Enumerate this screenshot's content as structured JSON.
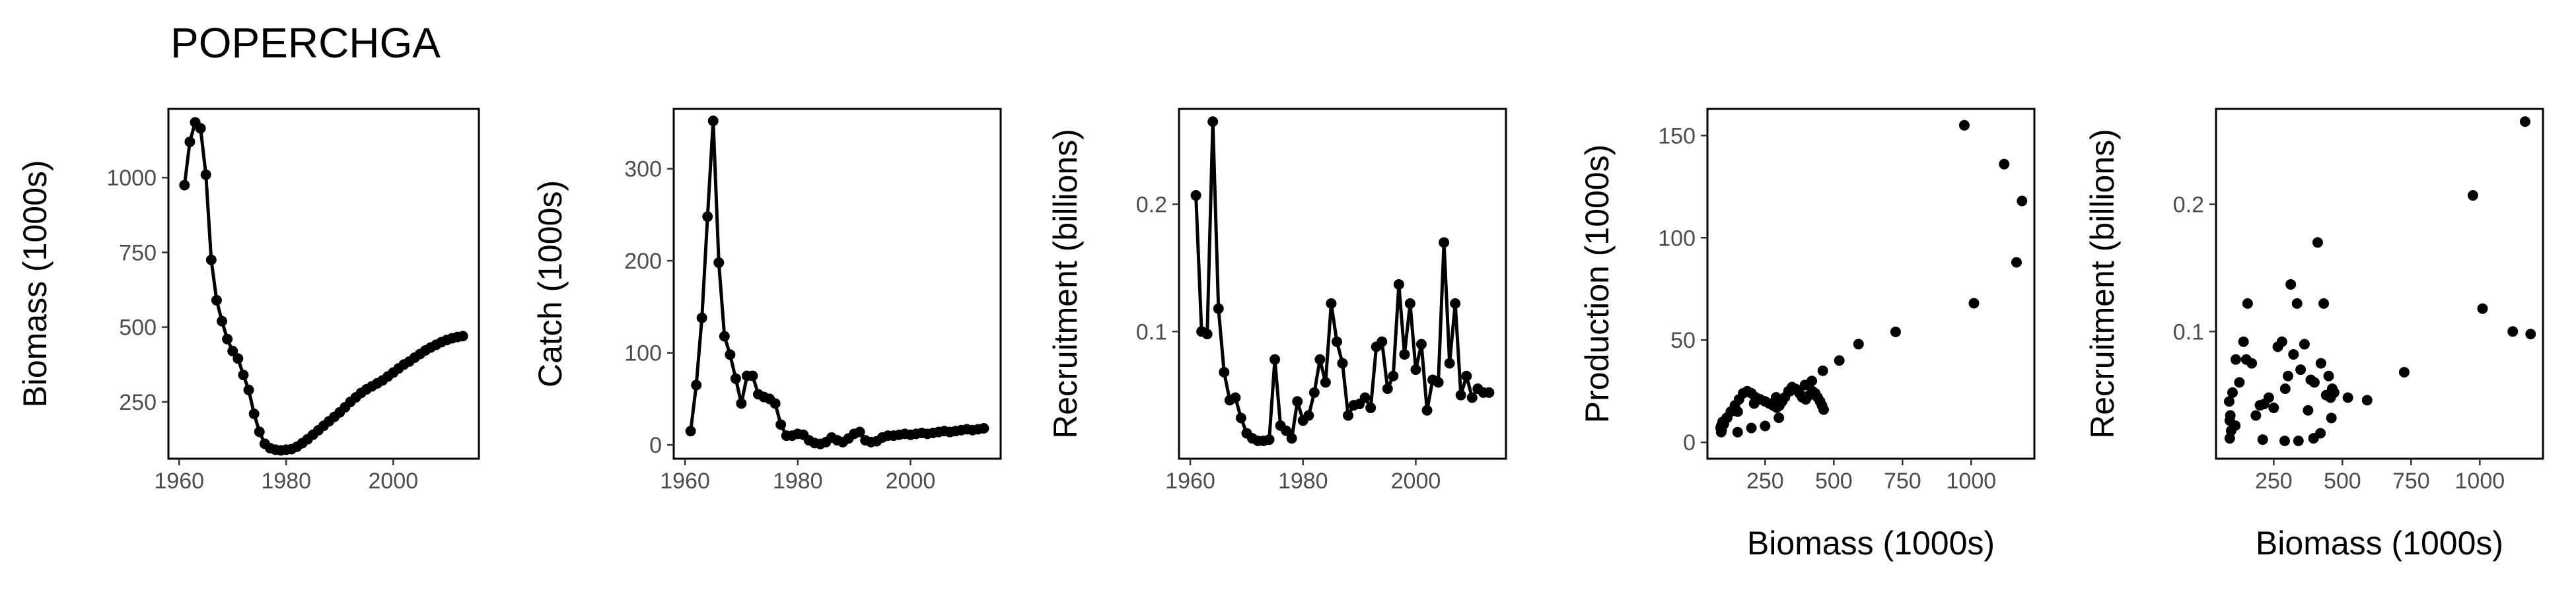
{
  "title": "POPERCHGA",
  "chart_data": [
    {
      "type": "line",
      "xlabel": "",
      "ylabel": "Biomass (1000s)",
      "xlim": [
        1958,
        2016
      ],
      "ylim": [
        60,
        1230
      ],
      "xticks": [
        1960,
        1980,
        2000
      ],
      "yticks": [
        250,
        500,
        750,
        1000
      ],
      "grid": false,
      "x": [
        1961,
        1962,
        1963,
        1964,
        1965,
        1966,
        1967,
        1968,
        1969,
        1970,
        1971,
        1972,
        1973,
        1974,
        1975,
        1976,
        1977,
        1978,
        1979,
        1980,
        1981,
        1982,
        1983,
        1984,
        1985,
        1986,
        1987,
        1988,
        1989,
        1990,
        1991,
        1992,
        1993,
        1994,
        1995,
        1996,
        1997,
        1998,
        1999,
        2000,
        2001,
        2002,
        2003,
        2004,
        2005,
        2006,
        2007,
        2008,
        2009,
        2010,
        2011,
        2012,
        2013
      ],
      "y": [
        975,
        1120,
        1185,
        1165,
        1010,
        725,
        590,
        520,
        460,
        420,
        395,
        340,
        290,
        210,
        150,
        110,
        95,
        90,
        88,
        90,
        92,
        100,
        112,
        125,
        140,
        155,
        170,
        185,
        200,
        215,
        232,
        250,
        265,
        280,
        292,
        302,
        312,
        322,
        335,
        348,
        362,
        375,
        385,
        398,
        410,
        422,
        432,
        441,
        450,
        457,
        463,
        467,
        470
      ]
    },
    {
      "type": "line",
      "xlabel": "",
      "ylabel": "Catch (1000s)",
      "xlim": [
        1958,
        2016
      ],
      "ylim": [
        -15,
        365
      ],
      "xticks": [
        1960,
        1980,
        2000
      ],
      "yticks": [
        0,
        100,
        200,
        300
      ],
      "grid": false,
      "x": [
        1961,
        1962,
        1963,
        1964,
        1965,
        1966,
        1967,
        1968,
        1969,
        1970,
        1971,
        1972,
        1973,
        1974,
        1975,
        1976,
        1977,
        1978,
        1979,
        1980,
        1981,
        1982,
        1983,
        1984,
        1985,
        1986,
        1987,
        1988,
        1989,
        1990,
        1991,
        1992,
        1993,
        1994,
        1995,
        1996,
        1997,
        1998,
        1999,
        2000,
        2001,
        2002,
        2003,
        2004,
        2005,
        2006,
        2007,
        2008,
        2009,
        2010,
        2011,
        2012,
        2013
      ],
      "y": [
        15,
        65,
        138,
        248,
        352,
        198,
        118,
        98,
        72,
        45,
        75,
        75,
        55,
        52,
        50,
        45,
        22,
        10,
        10,
        12,
        11,
        5,
        2,
        1,
        3,
        8,
        5,
        3,
        7,
        12,
        14,
        5,
        3,
        4,
        8,
        10,
        10,
        11,
        12,
        11,
        12,
        13,
        12,
        13,
        14,
        15,
        14,
        15,
        16,
        17,
        16,
        17,
        18
      ]
    },
    {
      "type": "line",
      "xlabel": "",
      "ylabel": "Recruitment (billions)",
      "xlim": [
        1958,
        2016
      ],
      "ylim": [
        0,
        0.275
      ],
      "xticks": [
        1960,
        1980,
        2000
      ],
      "yticks": [
        0.1,
        0.2
      ],
      "grid": false,
      "x": [
        1961,
        1962,
        1963,
        1964,
        1965,
        1966,
        1967,
        1968,
        1969,
        1970,
        1971,
        1972,
        1973,
        1974,
        1975,
        1976,
        1977,
        1978,
        1979,
        1980,
        1981,
        1982,
        1983,
        1984,
        1985,
        1986,
        1987,
        1988,
        1989,
        1990,
        1991,
        1992,
        1993,
        1994,
        1995,
        1996,
        1997,
        1998,
        1999,
        2000,
        2001,
        2002,
        2003,
        2004,
        2005,
        2006,
        2007,
        2008,
        2009,
        2010,
        2011,
        2012,
        2013
      ],
      "y": [
        0.207,
        0.1,
        0.098,
        0.265,
        0.118,
        0.068,
        0.046,
        0.048,
        0.032,
        0.02,
        0.016,
        0.014,
        0.014,
        0.015,
        0.078,
        0.026,
        0.022,
        0.016,
        0.045,
        0.03,
        0.034,
        0.052,
        0.078,
        0.06,
        0.122,
        0.092,
        0.075,
        0.034,
        0.042,
        0.043,
        0.048,
        0.04,
        0.088,
        0.092,
        0.055,
        0.065,
        0.137,
        0.082,
        0.122,
        0.07,
        0.09,
        0.038,
        0.062,
        0.06,
        0.17,
        0.075,
        0.122,
        0.05,
        0.065,
        0.048,
        0.055,
        0.052,
        0.052
      ]
    },
    {
      "type": "scatter",
      "xlabel": "Biomass (1000s)",
      "ylabel": "Production (1000s)",
      "xlim": [
        40,
        1230
      ],
      "ylim": [
        -8,
        163
      ],
      "xticks": [
        250,
        500,
        750,
        1000
      ],
      "yticks": [
        0,
        50,
        100,
        150
      ],
      "grid": false,
      "points": [
        [
          975,
          155
        ],
        [
          1120,
          136
        ],
        [
          1185,
          118
        ],
        [
          1165,
          88
        ],
        [
          1010,
          68
        ],
        [
          725,
          54
        ],
        [
          590,
          48
        ],
        [
          520,
          40
        ],
        [
          460,
          35
        ],
        [
          420,
          30
        ],
        [
          395,
          28
        ],
        [
          340,
          25
        ],
        [
          290,
          22
        ],
        [
          210,
          19
        ],
        [
          150,
          15
        ],
        [
          110,
          12
        ],
        [
          95,
          10
        ],
        [
          90,
          8
        ],
        [
          88,
          7
        ],
        [
          90,
          5
        ],
        [
          92,
          6
        ],
        [
          100,
          9
        ],
        [
          112,
          12
        ],
        [
          125,
          15
        ],
        [
          140,
          18
        ],
        [
          155,
          21
        ],
        [
          170,
          24
        ],
        [
          185,
          25
        ],
        [
          200,
          24
        ],
        [
          215,
          22
        ],
        [
          232,
          21
        ],
        [
          250,
          20
        ],
        [
          265,
          19
        ],
        [
          280,
          18
        ],
        [
          292,
          17
        ],
        [
          302,
          18
        ],
        [
          312,
          20
        ],
        [
          322,
          22
        ],
        [
          335,
          25
        ],
        [
          348,
          27
        ],
        [
          362,
          26
        ],
        [
          375,
          24
        ],
        [
          385,
          22
        ],
        [
          398,
          21
        ],
        [
          410,
          23
        ],
        [
          422,
          25
        ],
        [
          432,
          24
        ],
        [
          441,
          22
        ],
        [
          450,
          20
        ],
        [
          457,
          18
        ],
        [
          463,
          16
        ],
        [
          300,
          12
        ],
        [
          250,
          8
        ],
        [
          200,
          7
        ],
        [
          150,
          5
        ]
      ]
    },
    {
      "type": "scatter",
      "xlabel": "Biomass (1000s)",
      "ylabel": "Recruitment (billions)",
      "xlim": [
        40,
        1230
      ],
      "ylim": [
        0,
        0.275
      ],
      "xticks": [
        250,
        500,
        750,
        1000
      ],
      "yticks": [
        0.1,
        0.2
      ],
      "grid": false,
      "points": [
        [
          975,
          0.207
        ],
        [
          1120,
          0.1
        ],
        [
          1185,
          0.098
        ],
        [
          1165,
          0.265
        ],
        [
          1010,
          0.118
        ],
        [
          725,
          0.068
        ],
        [
          590,
          0.046
        ],
        [
          520,
          0.048
        ],
        [
          460,
          0.032
        ],
        [
          420,
          0.02
        ],
        [
          395,
          0.016
        ],
        [
          340,
          0.014
        ],
        [
          290,
          0.014
        ],
        [
          210,
          0.015
        ],
        [
          150,
          0.078
        ],
        [
          110,
          0.026
        ],
        [
          95,
          0.022
        ],
        [
          90,
          0.016
        ],
        [
          88,
          0.045
        ],
        [
          90,
          0.03
        ],
        [
          92,
          0.034
        ],
        [
          100,
          0.052
        ],
        [
          112,
          0.078
        ],
        [
          125,
          0.06
        ],
        [
          140,
          0.092
        ],
        [
          155,
          0.122
        ],
        [
          170,
          0.075
        ],
        [
          185,
          0.034
        ],
        [
          200,
          0.042
        ],
        [
          215,
          0.043
        ],
        [
          232,
          0.048
        ],
        [
          250,
          0.04
        ],
        [
          265,
          0.088
        ],
        [
          280,
          0.092
        ],
        [
          292,
          0.055
        ],
        [
          302,
          0.065
        ],
        [
          312,
          0.137
        ],
        [
          322,
          0.082
        ],
        [
          335,
          0.122
        ],
        [
          348,
          0.07
        ],
        [
          362,
          0.09
        ],
        [
          375,
          0.038
        ],
        [
          385,
          0.062
        ],
        [
          398,
          0.06
        ],
        [
          410,
          0.17
        ],
        [
          422,
          0.075
        ],
        [
          432,
          0.122
        ],
        [
          441,
          0.05
        ],
        [
          450,
          0.065
        ],
        [
          457,
          0.048
        ],
        [
          463,
          0.055
        ],
        [
          470,
          0.052
        ]
      ]
    }
  ]
}
